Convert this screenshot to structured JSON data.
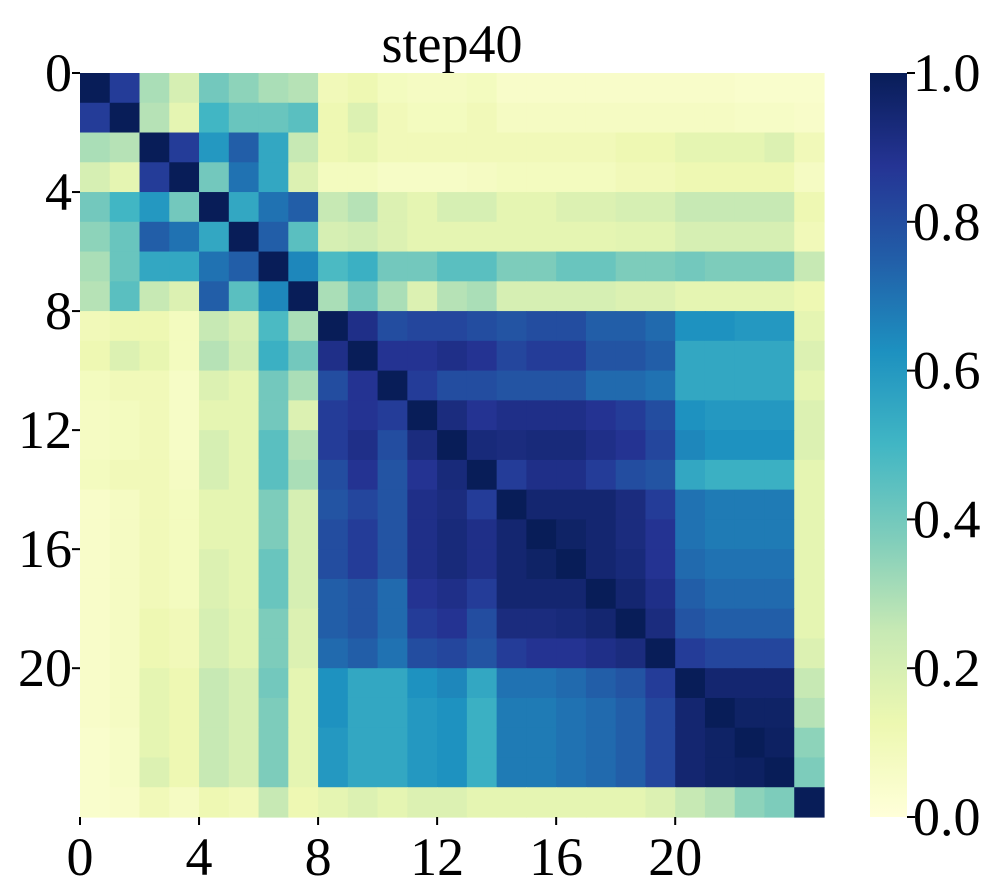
{
  "chart_data": {
    "type": "heatmap",
    "title": "step40",
    "size": 25,
    "x_ticks": [
      "0",
      "4",
      "8",
      "12",
      "16",
      "20"
    ],
    "y_ticks": [
      "0",
      "4",
      "8",
      "12",
      "16",
      "20"
    ],
    "tick_indices": [
      0,
      4,
      8,
      12,
      16,
      20
    ],
    "colorbar": {
      "range": [
        0.0,
        1.0
      ],
      "ticks": [
        "0.0",
        "0.2",
        "0.4",
        "0.6",
        "0.8",
        "1.0"
      ],
      "colormap": "YlGnBu",
      "stops": [
        "#ffffd9",
        "#edf8b1",
        "#c7e9b4",
        "#7fcdbb",
        "#41b6c4",
        "#1d91c0",
        "#225ea8",
        "#253494",
        "#081d58"
      ]
    },
    "values": [
      [
        1.0,
        0.85,
        0.3,
        0.2,
        0.4,
        0.35,
        0.3,
        0.28,
        0.1,
        0.12,
        0.08,
        0.07,
        0.07,
        0.08,
        0.05,
        0.05,
        0.05,
        0.05,
        0.05,
        0.05,
        0.05,
        0.05,
        0.04,
        0.04,
        0.04
      ],
      [
        0.85,
        1.0,
        0.28,
        0.15,
        0.5,
        0.42,
        0.42,
        0.45,
        0.12,
        0.18,
        0.1,
        0.08,
        0.08,
        0.1,
        0.07,
        0.07,
        0.07,
        0.07,
        0.07,
        0.07,
        0.07,
        0.07,
        0.06,
        0.06,
        0.05
      ],
      [
        0.3,
        0.28,
        1.0,
        0.85,
        0.6,
        0.75,
        0.55,
        0.25,
        0.12,
        0.14,
        0.1,
        0.1,
        0.1,
        0.1,
        0.1,
        0.1,
        0.1,
        0.1,
        0.12,
        0.12,
        0.15,
        0.15,
        0.15,
        0.18,
        0.1
      ],
      [
        0.2,
        0.15,
        0.85,
        1.0,
        0.4,
        0.7,
        0.55,
        0.18,
        0.08,
        0.08,
        0.06,
        0.06,
        0.06,
        0.07,
        0.08,
        0.08,
        0.08,
        0.08,
        0.1,
        0.1,
        0.12,
        0.12,
        0.12,
        0.12,
        0.07
      ],
      [
        0.4,
        0.5,
        0.6,
        0.4,
        1.0,
        0.55,
        0.7,
        0.75,
        0.25,
        0.28,
        0.18,
        0.15,
        0.2,
        0.2,
        0.15,
        0.15,
        0.18,
        0.18,
        0.2,
        0.2,
        0.25,
        0.25,
        0.25,
        0.25,
        0.12
      ],
      [
        0.35,
        0.42,
        0.75,
        0.7,
        0.55,
        1.0,
        0.75,
        0.45,
        0.2,
        0.22,
        0.18,
        0.15,
        0.15,
        0.15,
        0.15,
        0.15,
        0.15,
        0.15,
        0.16,
        0.16,
        0.2,
        0.2,
        0.2,
        0.2,
        0.1
      ],
      [
        0.3,
        0.42,
        0.55,
        0.55,
        0.7,
        0.75,
        1.0,
        0.65,
        0.48,
        0.52,
        0.4,
        0.4,
        0.45,
        0.45,
        0.38,
        0.38,
        0.42,
        0.42,
        0.38,
        0.38,
        0.4,
        0.38,
        0.38,
        0.38,
        0.25
      ],
      [
        0.28,
        0.45,
        0.25,
        0.18,
        0.75,
        0.45,
        0.65,
        1.0,
        0.3,
        0.4,
        0.3,
        0.18,
        0.28,
        0.3,
        0.2,
        0.2,
        0.2,
        0.2,
        0.18,
        0.18,
        0.15,
        0.15,
        0.15,
        0.15,
        0.12
      ],
      [
        0.1,
        0.12,
        0.12,
        0.08,
        0.25,
        0.2,
        0.48,
        0.3,
        1.0,
        0.9,
        0.8,
        0.82,
        0.82,
        0.8,
        0.78,
        0.8,
        0.8,
        0.75,
        0.75,
        0.72,
        0.62,
        0.62,
        0.6,
        0.6,
        0.15
      ],
      [
        0.12,
        0.18,
        0.14,
        0.08,
        0.28,
        0.22,
        0.52,
        0.4,
        0.9,
        1.0,
        0.88,
        0.88,
        0.9,
        0.88,
        0.82,
        0.85,
        0.85,
        0.78,
        0.78,
        0.75,
        0.55,
        0.55,
        0.55,
        0.55,
        0.18
      ],
      [
        0.08,
        0.1,
        0.1,
        0.06,
        0.18,
        0.15,
        0.4,
        0.3,
        0.8,
        0.88,
        1.0,
        0.85,
        0.8,
        0.8,
        0.78,
        0.78,
        0.78,
        0.72,
        0.72,
        0.7,
        0.55,
        0.55,
        0.55,
        0.55,
        0.15
      ],
      [
        0.07,
        0.08,
        0.1,
        0.06,
        0.15,
        0.15,
        0.4,
        0.18,
        0.85,
        0.88,
        0.85,
        1.0,
        0.92,
        0.88,
        0.9,
        0.9,
        0.9,
        0.88,
        0.85,
        0.8,
        0.62,
        0.6,
        0.6,
        0.6,
        0.18
      ],
      [
        0.07,
        0.08,
        0.1,
        0.06,
        0.2,
        0.15,
        0.45,
        0.28,
        0.85,
        0.9,
        0.8,
        0.92,
        1.0,
        0.93,
        0.92,
        0.93,
        0.93,
        0.9,
        0.88,
        0.82,
        0.65,
        0.62,
        0.62,
        0.62,
        0.18
      ],
      [
        0.08,
        0.1,
        0.1,
        0.07,
        0.2,
        0.15,
        0.45,
        0.3,
        0.8,
        0.88,
        0.78,
        0.88,
        0.93,
        1.0,
        0.85,
        0.9,
        0.9,
        0.85,
        0.8,
        0.78,
        0.55,
        0.52,
        0.52,
        0.52,
        0.15
      ],
      [
        0.05,
        0.07,
        0.1,
        0.08,
        0.15,
        0.15,
        0.38,
        0.2,
        0.78,
        0.82,
        0.78,
        0.9,
        0.92,
        0.85,
        1.0,
        0.95,
        0.95,
        0.95,
        0.92,
        0.85,
        0.7,
        0.68,
        0.68,
        0.68,
        0.15
      ],
      [
        0.05,
        0.07,
        0.1,
        0.08,
        0.15,
        0.15,
        0.38,
        0.2,
        0.8,
        0.85,
        0.78,
        0.9,
        0.93,
        0.9,
        0.95,
        1.0,
        0.97,
        0.95,
        0.92,
        0.88,
        0.7,
        0.68,
        0.68,
        0.68,
        0.15
      ],
      [
        0.05,
        0.07,
        0.1,
        0.08,
        0.18,
        0.15,
        0.42,
        0.2,
        0.8,
        0.85,
        0.78,
        0.9,
        0.93,
        0.9,
        0.95,
        0.97,
        1.0,
        0.95,
        0.93,
        0.88,
        0.72,
        0.7,
        0.7,
        0.7,
        0.15
      ],
      [
        0.05,
        0.07,
        0.1,
        0.08,
        0.18,
        0.15,
        0.42,
        0.2,
        0.75,
        0.78,
        0.72,
        0.88,
        0.9,
        0.85,
        0.95,
        0.95,
        0.95,
        1.0,
        0.95,
        0.9,
        0.75,
        0.72,
        0.72,
        0.72,
        0.15
      ],
      [
        0.05,
        0.07,
        0.12,
        0.1,
        0.2,
        0.16,
        0.38,
        0.18,
        0.75,
        0.78,
        0.72,
        0.85,
        0.88,
        0.8,
        0.92,
        0.92,
        0.93,
        0.95,
        1.0,
        0.92,
        0.78,
        0.75,
        0.75,
        0.75,
        0.15
      ],
      [
        0.05,
        0.07,
        0.12,
        0.1,
        0.2,
        0.16,
        0.38,
        0.18,
        0.72,
        0.75,
        0.7,
        0.8,
        0.82,
        0.78,
        0.85,
        0.88,
        0.88,
        0.9,
        0.92,
        1.0,
        0.85,
        0.82,
        0.82,
        0.82,
        0.18
      ],
      [
        0.05,
        0.07,
        0.15,
        0.12,
        0.25,
        0.2,
        0.4,
        0.15,
        0.62,
        0.55,
        0.55,
        0.62,
        0.65,
        0.55,
        0.7,
        0.7,
        0.72,
        0.75,
        0.78,
        0.85,
        1.0,
        0.95,
        0.95,
        0.95,
        0.25
      ],
      [
        0.05,
        0.07,
        0.15,
        0.12,
        0.25,
        0.2,
        0.38,
        0.15,
        0.62,
        0.55,
        0.55,
        0.6,
        0.62,
        0.52,
        0.68,
        0.68,
        0.7,
        0.72,
        0.75,
        0.82,
        0.95,
        1.0,
        0.97,
        0.97,
        0.28
      ],
      [
        0.04,
        0.06,
        0.15,
        0.12,
        0.25,
        0.2,
        0.38,
        0.15,
        0.6,
        0.55,
        0.55,
        0.6,
        0.62,
        0.52,
        0.68,
        0.68,
        0.7,
        0.72,
        0.75,
        0.82,
        0.95,
        0.97,
        1.0,
        0.98,
        0.35
      ],
      [
        0.04,
        0.06,
        0.18,
        0.12,
        0.25,
        0.2,
        0.38,
        0.15,
        0.6,
        0.55,
        0.55,
        0.6,
        0.62,
        0.52,
        0.68,
        0.68,
        0.7,
        0.72,
        0.75,
        0.82,
        0.95,
        0.97,
        0.98,
        1.0,
        0.38
      ],
      [
        0.04,
        0.05,
        0.1,
        0.07,
        0.12,
        0.1,
        0.25,
        0.12,
        0.15,
        0.18,
        0.15,
        0.18,
        0.18,
        0.15,
        0.15,
        0.15,
        0.15,
        0.15,
        0.15,
        0.18,
        0.25,
        0.28,
        0.35,
        0.38,
        1.0
      ]
    ]
  }
}
